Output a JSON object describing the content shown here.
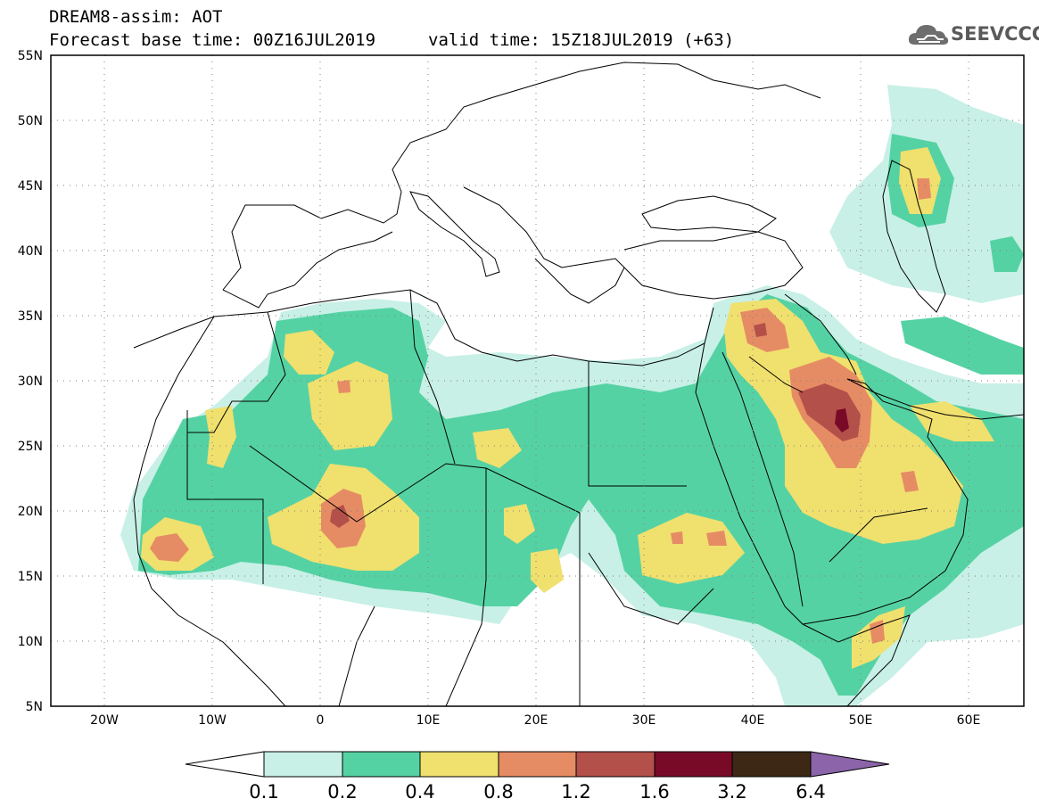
{
  "header": {
    "title_line1": "DREAM8-assim: AOT",
    "title_line2": "Forecast base time: 00Z16JUL2019",
    "valid_time": "valid time: 15Z18JUL2019 (+63)",
    "logo_text": "SEEVCCC"
  },
  "map": {
    "lon_range": [
      -25,
      65
    ],
    "lat_range": [
      5,
      55
    ],
    "lat_ticks": [
      "5N",
      "10N",
      "15N",
      "20N",
      "25N",
      "30N",
      "35N",
      "40N",
      "45N",
      "50N",
      "55N"
    ],
    "lon_ticks": [
      "20W",
      "10W",
      "0",
      "10E",
      "20E",
      "30E",
      "40E",
      "50E",
      "60E"
    ]
  },
  "colorbar": {
    "labels": [
      "0.1",
      "0.2",
      "0.4",
      "0.8",
      "1.2",
      "1.6",
      "3.2",
      "6.4"
    ],
    "colors": [
      "#c8f0e6",
      "#55d2a4",
      "#f0e06e",
      "#e68c64",
      "#b4504a",
      "#780a28",
      "#3c2814",
      "#8c64aa"
    ]
  }
}
